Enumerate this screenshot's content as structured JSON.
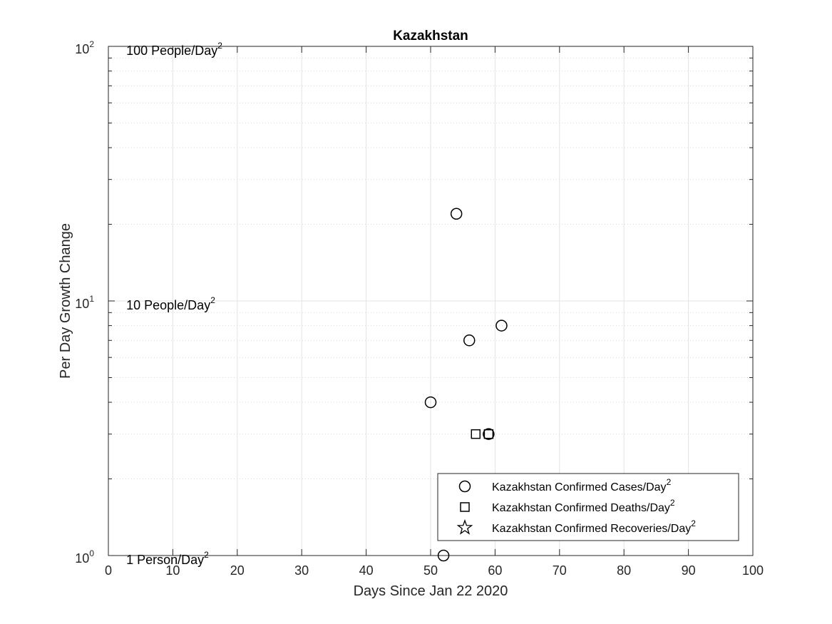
{
  "chart_data": {
    "type": "scatter",
    "title": "Kazakhstan",
    "xlabel": "Days Since Jan 22 2020",
    "ylabel": "Per Day Growth Change",
    "xlim": [
      0,
      100
    ],
    "ylim": [
      1,
      100
    ],
    "yscale": "log",
    "grid": true,
    "x_ticks": [
      "0",
      "10",
      "20",
      "30",
      "40",
      "50",
      "60",
      "70",
      "80",
      "90",
      "100"
    ],
    "y_ticks": [
      {
        "value": 1,
        "base": "10",
        "exp": "0"
      },
      {
        "value": 10,
        "base": "10",
        "exp": "1"
      },
      {
        "value": 100,
        "base": "10",
        "exp": "2"
      }
    ],
    "legend_position": "bottom-right",
    "series": [
      {
        "name": "Kazakhstan Confirmed Cases/Day",
        "name_sup": "2",
        "marker": "circle",
        "points": [
          {
            "x": 50,
            "y": 4
          },
          {
            "x": 52,
            "y": 1
          },
          {
            "x": 54,
            "y": 22
          },
          {
            "x": 56,
            "y": 7
          },
          {
            "x": 59,
            "y": 3
          },
          {
            "x": 61,
            "y": 8
          }
        ]
      },
      {
        "name": "Kazakhstan Confirmed Deaths/Day",
        "name_sup": "2",
        "marker": "square",
        "points": [
          {
            "x": 57,
            "y": 3
          },
          {
            "x": 59,
            "y": 3
          }
        ]
      },
      {
        "name": "Kazakhstan Confirmed Recoveries/Day",
        "name_sup": "2",
        "marker": "star",
        "points": []
      }
    ],
    "annotations": [
      {
        "text": "100 People/Day",
        "sup": "2",
        "x": 3,
        "y": 100
      },
      {
        "text": "10 People/Day",
        "sup": "2",
        "x": 3,
        "y": 10
      },
      {
        "text": "1 Person/Day",
        "sup": "2",
        "x": 3,
        "y": 1
      }
    ]
  }
}
